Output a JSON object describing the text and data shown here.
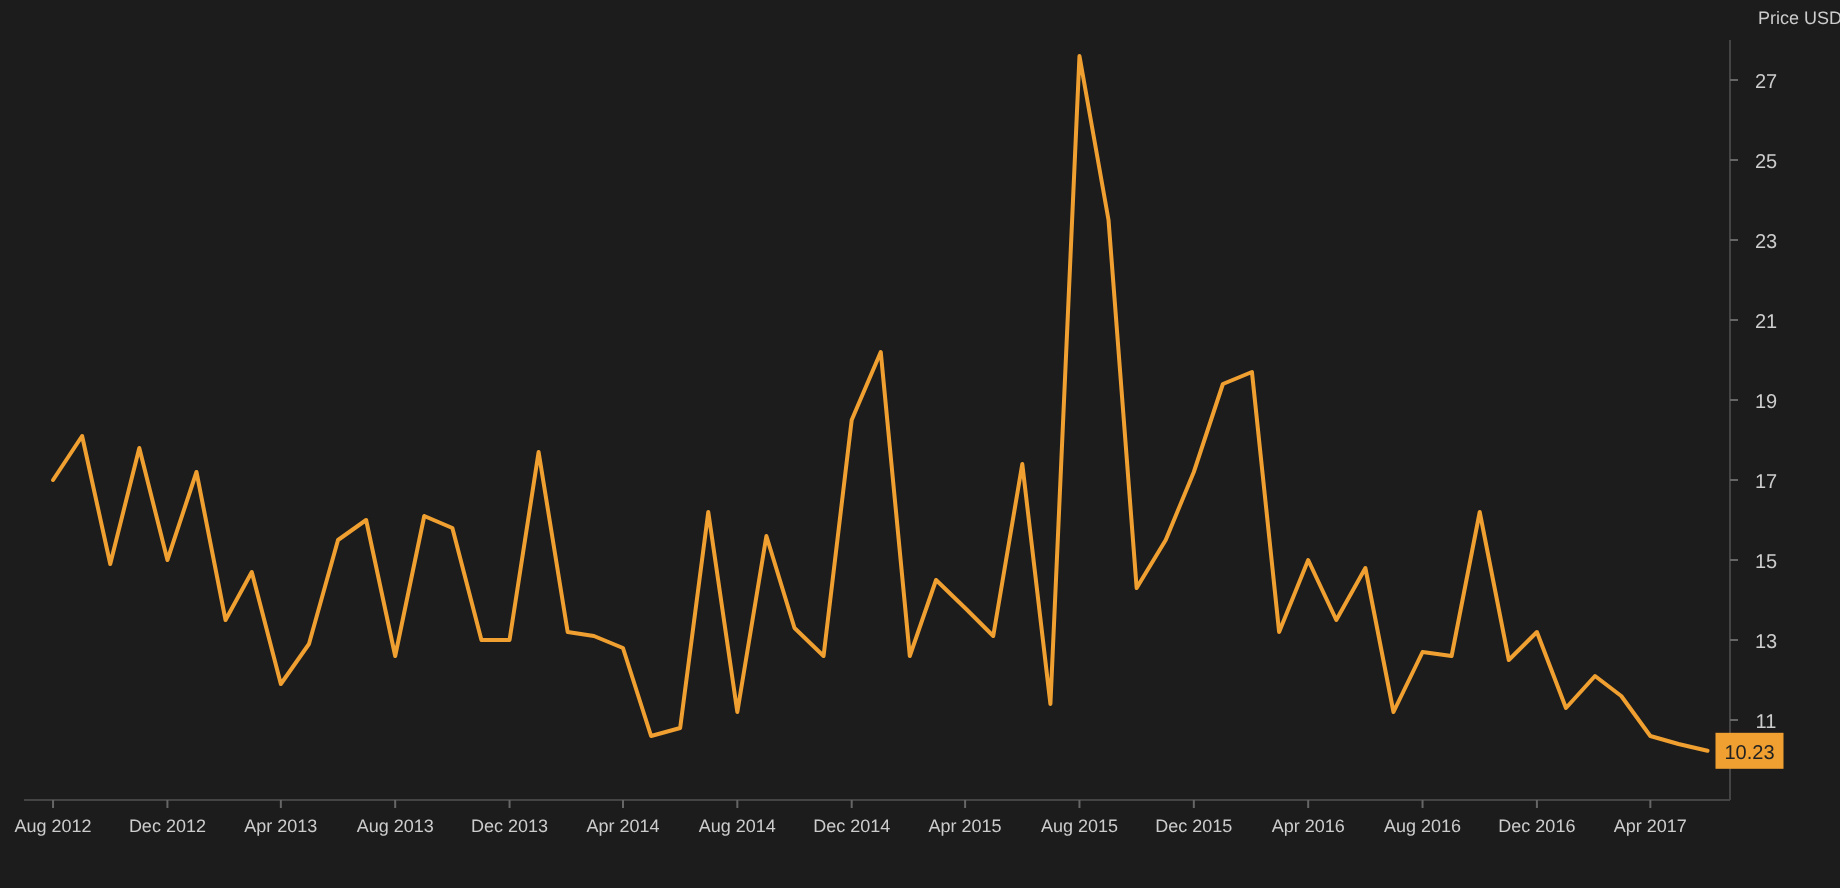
{
  "chart_data": {
    "type": "line",
    "ylabel": "Price USD",
    "grid": false,
    "marker": "none",
    "line_style": "solid",
    "x": [
      "2012-08",
      "2012-09",
      "2012-10",
      "2012-11",
      "2012-12",
      "2013-01",
      "2013-02",
      "2013-03",
      "2013-04",
      "2013-05",
      "2013-06",
      "2013-07",
      "2013-08",
      "2013-09",
      "2013-10",
      "2013-11",
      "2013-12",
      "2014-01",
      "2014-02",
      "2014-03",
      "2014-04",
      "2014-05",
      "2014-06",
      "2014-07",
      "2014-08",
      "2014-09",
      "2014-10",
      "2014-11",
      "2014-12",
      "2015-01",
      "2015-02",
      "2015-03",
      "2015-04",
      "2015-05",
      "2015-06",
      "2015-07",
      "2015-08",
      "2015-09",
      "2015-10",
      "2015-11",
      "2015-12",
      "2016-01",
      "2016-02",
      "2016-03",
      "2016-04",
      "2016-05",
      "2016-06",
      "2016-07",
      "2016-08",
      "2016-09",
      "2016-10",
      "2016-11",
      "2016-12",
      "2017-01",
      "2017-02",
      "2017-03",
      "2017-04",
      "2017-05",
      "2017-06"
    ],
    "series": [
      {
        "color": "#f0a030",
        "values": [
          17.0,
          18.1,
          14.9,
          17.8,
          15.0,
          17.2,
          13.5,
          14.7,
          11.9,
          12.9,
          15.5,
          16.0,
          12.6,
          16.1,
          15.8,
          13.0,
          13.0,
          17.7,
          13.2,
          13.1,
          12.8,
          10.6,
          10.8,
          16.2,
          11.2,
          15.6,
          13.3,
          12.6,
          18.5,
          20.2,
          12.6,
          14.5,
          13.8,
          13.1,
          17.4,
          11.4,
          27.6,
          23.5,
          14.3,
          15.5,
          17.2,
          19.4,
          19.7,
          13.2,
          15.0,
          13.5,
          14.8,
          11.2,
          12.7,
          12.6,
          16.2,
          12.5,
          13.2,
          11.3,
          12.1,
          11.6,
          10.6,
          10.4,
          10.23
        ],
        "value_labels": [
          null,
          null,
          null,
          null,
          null,
          null,
          null,
          null,
          null,
          null,
          null,
          null,
          null,
          null,
          null,
          null,
          null,
          null,
          null,
          null,
          null,
          null,
          null,
          null,
          null,
          null,
          null,
          null,
          null,
          null,
          null,
          null,
          null,
          null,
          null,
          null,
          null,
          null,
          null,
          null,
          null,
          null,
          null,
          null,
          null,
          null,
          null,
          null,
          null,
          null,
          null,
          null,
          null,
          null,
          null,
          null,
          null,
          null,
          "10.23"
        ]
      }
    ],
    "ylim": [
      9,
      28
    ],
    "yticks": [
      11,
      13,
      15,
      17,
      19,
      21,
      23,
      25,
      27
    ],
    "xlim": [
      "2012-07-01",
      "2017-06-25"
    ],
    "xticks": [
      {
        "value": "2012-08",
        "label": "Aug 2012"
      },
      {
        "value": "2012-12",
        "label": "Dec 2012"
      },
      {
        "value": "2013-04",
        "label": "Apr 2013"
      },
      {
        "value": "2013-08",
        "label": "Aug 2013"
      },
      {
        "value": "2013-12",
        "label": "Dec 2013"
      },
      {
        "value": "2014-04",
        "label": "Apr 2014"
      },
      {
        "value": "2014-08",
        "label": "Aug 2014"
      },
      {
        "value": "2014-12",
        "label": "Dec 2014"
      },
      {
        "value": "2015-04",
        "label": "Apr 2015"
      },
      {
        "value": "2015-08",
        "label": "Aug 2015"
      },
      {
        "value": "2015-12",
        "label": "Dec 2015"
      },
      {
        "value": "2016-04",
        "label": "Apr 2016"
      },
      {
        "value": "2016-08",
        "label": "Aug 2016"
      },
      {
        "value": "2016-12",
        "label": "Dec 2016"
      },
      {
        "value": "2017-04",
        "label": "Apr 2017"
      }
    ]
  }
}
